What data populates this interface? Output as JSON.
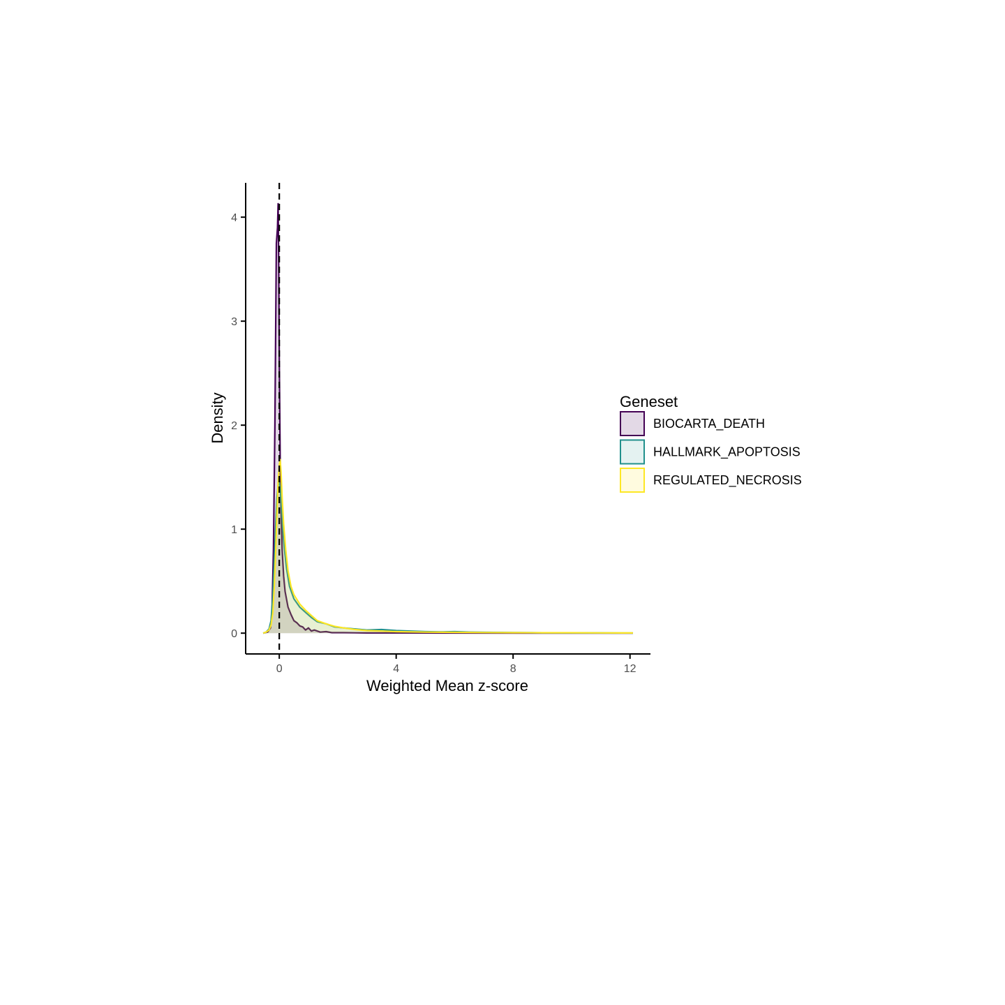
{
  "chart_data": {
    "type": "area",
    "subtype": "density",
    "xlabel": "Weighted Mean z-score",
    "ylabel": "Density",
    "xlim": [
      -1.15,
      12.7
    ],
    "ylim": [
      -0.2,
      4.33
    ],
    "xticks": [
      0,
      4,
      8,
      12
    ],
    "yticks": [
      0,
      1,
      2,
      3,
      4
    ],
    "reference_line": {
      "x": 0,
      "style": "dashed",
      "color": "#000000"
    },
    "grid": false,
    "legend": {
      "title": "Geneset",
      "placement": "right"
    },
    "series": [
      {
        "name": "BIOCARTA_DEATH",
        "stroke": "#440154",
        "fill": "#440154",
        "fill_opacity": 0.15,
        "points": [
          [
            -0.55,
            0
          ],
          [
            -0.4,
            0.01
          ],
          [
            -0.3,
            0.05
          ],
          [
            -0.25,
            0.2
          ],
          [
            -0.2,
            0.8
          ],
          [
            -0.15,
            2.0
          ],
          [
            -0.12,
            3.0
          ],
          [
            -0.1,
            3.75
          ],
          [
            -0.06,
            3.9
          ],
          [
            -0.04,
            4.13
          ],
          [
            -0.02,
            3.6
          ],
          [
            0.0,
            2.6
          ],
          [
            0.03,
            1.7
          ],
          [
            0.06,
            1.2
          ],
          [
            0.1,
            0.8
          ],
          [
            0.15,
            0.55
          ],
          [
            0.2,
            0.4
          ],
          [
            0.3,
            0.25
          ],
          [
            0.4,
            0.18
          ],
          [
            0.5,
            0.12
          ],
          [
            0.6,
            0.1
          ],
          [
            0.7,
            0.07
          ],
          [
            0.8,
            0.06
          ],
          [
            0.9,
            0.03
          ],
          [
            1.0,
            0.05
          ],
          [
            1.1,
            0.02
          ],
          [
            1.2,
            0.03
          ],
          [
            1.4,
            0.01
          ],
          [
            1.6,
            0.015
          ],
          [
            1.8,
            0.005
          ],
          [
            2.2,
            0.005
          ],
          [
            3.0,
            0.002
          ],
          [
            4.0,
            0.002
          ],
          [
            6.0,
            0.001
          ],
          [
            9.0,
            0.0
          ],
          [
            12.1,
            0.0
          ]
        ]
      },
      {
        "name": "HALLMARK_APOPTOSIS",
        "stroke": "#21908C",
        "fill": "#21908C",
        "fill_opacity": 0.12,
        "points": [
          [
            -0.55,
            0
          ],
          [
            -0.45,
            0.01
          ],
          [
            -0.35,
            0.04
          ],
          [
            -0.28,
            0.12
          ],
          [
            -0.22,
            0.35
          ],
          [
            -0.17,
            0.7
          ],
          [
            -0.12,
            1.05
          ],
          [
            -0.08,
            1.3
          ],
          [
            -0.04,
            1.42
          ],
          [
            0.0,
            1.45
          ],
          [
            0.04,
            1.38
          ],
          [
            0.08,
            1.2
          ],
          [
            0.12,
            1.0
          ],
          [
            0.18,
            0.8
          ],
          [
            0.25,
            0.62
          ],
          [
            0.35,
            0.45
          ],
          [
            0.5,
            0.33
          ],
          [
            0.7,
            0.25
          ],
          [
            0.9,
            0.2
          ],
          [
            1.1,
            0.15
          ],
          [
            1.3,
            0.11
          ],
          [
            1.6,
            0.09
          ],
          [
            1.9,
            0.06
          ],
          [
            2.2,
            0.05
          ],
          [
            2.6,
            0.04
          ],
          [
            3.0,
            0.03
          ],
          [
            3.5,
            0.035
          ],
          [
            4.0,
            0.025
          ],
          [
            4.5,
            0.02
          ],
          [
            5.0,
            0.015
          ],
          [
            5.5,
            0.012
          ],
          [
            6.0,
            0.015
          ],
          [
            6.5,
            0.01
          ],
          [
            7.0,
            0.008
          ],
          [
            8.0,
            0.006
          ],
          [
            9.0,
            0.004
          ],
          [
            10.0,
            0.003
          ],
          [
            11.0,
            0.002
          ],
          [
            12.1,
            0.001
          ]
        ]
      },
      {
        "name": "REGULATED_NECROSIS",
        "stroke": "#FDE725",
        "fill": "#FDE725",
        "fill_opacity": 0.15,
        "points": [
          [
            -0.55,
            0
          ],
          [
            -0.45,
            0.01
          ],
          [
            -0.35,
            0.03
          ],
          [
            -0.28,
            0.08
          ],
          [
            -0.22,
            0.2
          ],
          [
            -0.17,
            0.45
          ],
          [
            -0.12,
            0.8
          ],
          [
            -0.08,
            1.15
          ],
          [
            -0.04,
            1.45
          ],
          [
            0.0,
            1.62
          ],
          [
            0.03,
            1.67
          ],
          [
            0.06,
            1.55
          ],
          [
            0.1,
            1.3
          ],
          [
            0.15,
            1.05
          ],
          [
            0.22,
            0.8
          ],
          [
            0.3,
            0.6
          ],
          [
            0.4,
            0.45
          ],
          [
            0.5,
            0.37
          ],
          [
            0.7,
            0.28
          ],
          [
            0.9,
            0.22
          ],
          [
            1.1,
            0.17
          ],
          [
            1.3,
            0.12
          ],
          [
            1.6,
            0.09
          ],
          [
            1.9,
            0.065
          ],
          [
            2.2,
            0.05
          ],
          [
            2.6,
            0.035
          ],
          [
            3.0,
            0.025
          ],
          [
            3.5,
            0.02
          ],
          [
            4.0,
            0.015
          ],
          [
            5.0,
            0.01
          ],
          [
            6.0,
            0.008
          ],
          [
            7.0,
            0.006
          ],
          [
            8.0,
            0.005
          ],
          [
            9.0,
            0.004
          ],
          [
            10.0,
            0.004
          ],
          [
            11.0,
            0.003
          ],
          [
            12.1,
            0.002
          ]
        ]
      }
    ]
  }
}
